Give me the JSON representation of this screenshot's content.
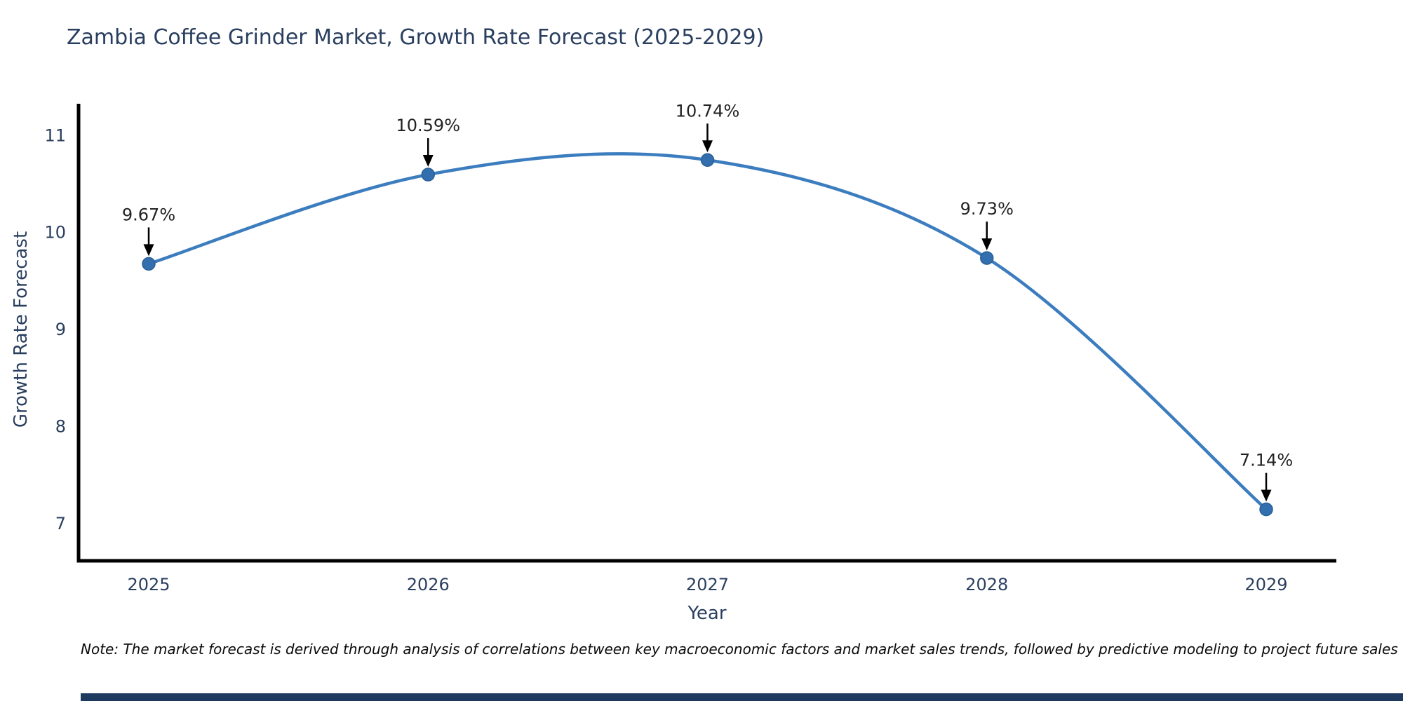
{
  "page": {
    "background": "#ffffff",
    "bottom_bar_color": "#1e3a5f"
  },
  "chart_data": {
    "type": "line",
    "line_shape": "spline",
    "title": "Zambia Coffee Grinder Market, Growth Rate Forecast (2025-2029)",
    "xlabel": "Year",
    "ylabel": "Growth Rate Forecast",
    "x": [
      2025,
      2026,
      2027,
      2028,
      2029
    ],
    "y": [
      9.67,
      10.59,
      10.74,
      9.73,
      7.14
    ],
    "point_labels": [
      "9.67%",
      "10.59%",
      "10.74%",
      "9.73%",
      "7.14%"
    ],
    "x_tick_labels": [
      "2025",
      "2026",
      "2027",
      "2028",
      "2029"
    ],
    "y_ticks": [
      7,
      8,
      9,
      10,
      11
    ],
    "ylim": [
      6.61,
      11.32
    ],
    "grid": false,
    "legend": "none",
    "colors": {
      "line": "#3c7dbf",
      "marker": "#336fae",
      "marker_stroke": "#2b5f96",
      "axis": "#000000",
      "tick_label": "#2a3f5f",
      "annotation_text": "#222222",
      "annotation_arrow": "#000000"
    }
  },
  "note": {
    "text": "Note: The market forecast is derived through analysis of correlations between key macroeconomic factors and market sales trends, followed by predictive modeling to project future sales"
  }
}
